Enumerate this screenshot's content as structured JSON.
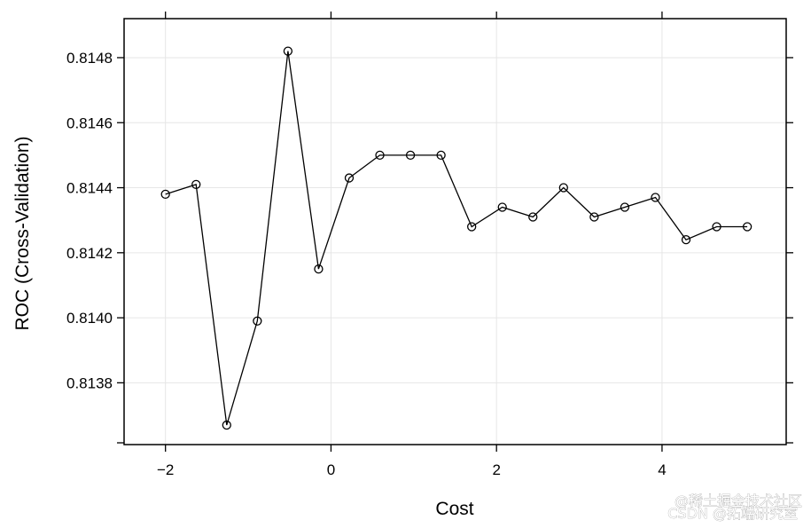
{
  "chart_data": {
    "type": "line",
    "xlabel": "Cost",
    "ylabel": "ROC (Cross-Validation)",
    "xlim": [
      -2.5,
      5.5
    ],
    "ylim": [
      0.81361,
      0.81492
    ],
    "x_ticks": [
      -2,
      0,
      2,
      4
    ],
    "x_tick_labels": [
      "−2",
      "0",
      "2",
      "4"
    ],
    "y_ticks": [
      0.8138,
      0.814,
      0.8142,
      0.8144,
      0.8146,
      0.8148
    ],
    "y_tick_labels": [
      "0.8138",
      "0.8140",
      "0.8142",
      "0.8144",
      "0.8146",
      "0.8148"
    ],
    "grid": true,
    "series": [
      {
        "x": [
          -2.0,
          -1.63,
          -1.26,
          -0.89,
          -0.52,
          -0.15,
          0.22,
          0.59,
          0.96,
          1.33,
          1.7,
          2.07,
          2.44,
          2.81,
          3.18,
          3.55,
          3.92,
          4.29,
          4.66,
          5.03
        ],
        "values": [
          0.81438,
          0.81441,
          0.81367,
          0.81399,
          0.81482,
          0.81415,
          0.81443,
          0.8145,
          0.8145,
          0.8145,
          0.81428,
          0.81434,
          0.81431,
          0.8144,
          0.81431,
          0.81434,
          0.81437,
          0.81424,
          0.81428,
          0.81428
        ]
      }
    ]
  },
  "watermark": {
    "line1": "@稀土掘金技术社区",
    "line2": "CSDN @拓端研究室"
  }
}
